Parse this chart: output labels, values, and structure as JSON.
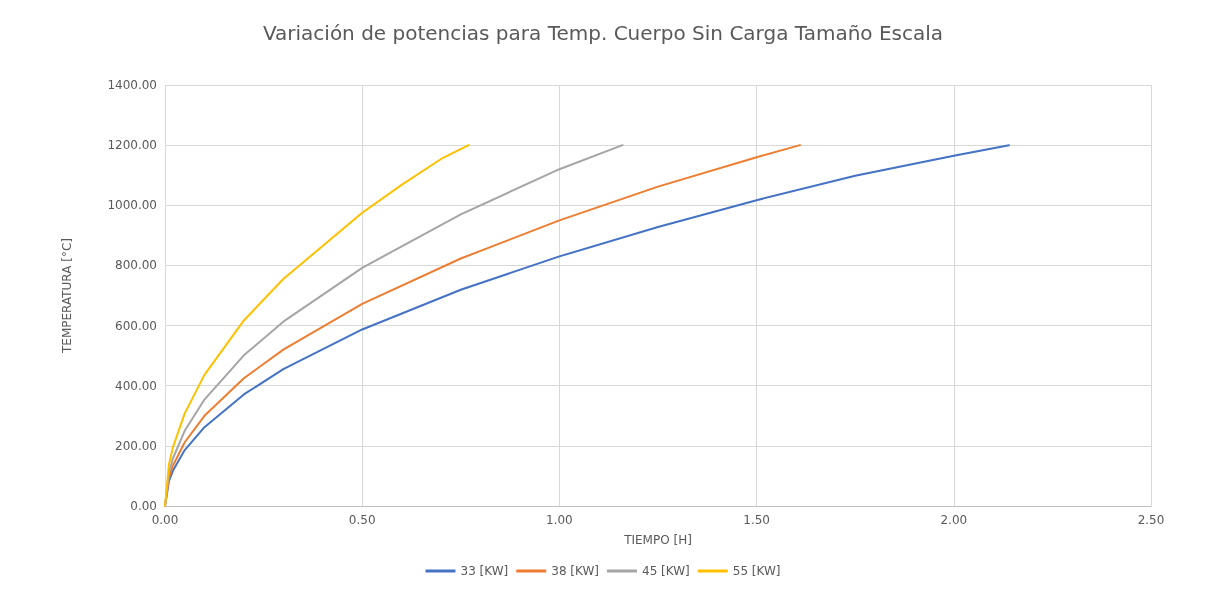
{
  "chart_data": {
    "type": "line",
    "title": "Variación de potencias para Temp. Cuerpo Sin Carga Tamaño Escala",
    "xlabel": "TIEMPO [H]",
    "ylabel": "TEMPERATURA [°C]",
    "xlim": [
      0,
      2.5
    ],
    "xticks": [
      {
        "value": 0,
        "label": "0.00"
      },
      {
        "value": 0.5,
        "label": "0.50"
      },
      {
        "value": 1,
        "label": "1.00"
      },
      {
        "value": 1.5,
        "label": "1.50"
      },
      {
        "value": 2,
        "label": "2.00"
      },
      {
        "value": 2.5,
        "label": "2.50"
      }
    ],
    "ylim": [
      0,
      1400
    ],
    "yticks": [
      {
        "value": 0,
        "label": "0.00"
      },
      {
        "value": 200,
        "label": "200.00"
      },
      {
        "value": 400,
        "label": "400.00"
      },
      {
        "value": 600,
        "label": "600.00"
      },
      {
        "value": 800,
        "label": "800.00"
      },
      {
        "value": 1000,
        "label": "1000.00"
      },
      {
        "value": 1200,
        "label": "1200.00"
      },
      {
        "value": 1400,
        "label": "1400.00"
      }
    ],
    "grid": true,
    "legend": "bottom",
    "marker": "none",
    "line_style": "solid",
    "series": [
      {
        "name": "33 [KW]",
        "color": "#4472c4",
        "x": [
          0,
          0.01,
          0.02,
          0.05,
          0.1,
          0.2,
          0.3,
          0.5,
          0.75,
          1.0,
          1.25,
          1.5,
          1.75,
          2.0,
          2.14
        ],
        "values": [
          0,
          83,
          117,
          186,
          262,
          371,
          455,
          587,
          719,
          830,
          928,
          1017,
          1098,
          1165,
          1200
        ]
      },
      {
        "name": "38 [KW]",
        "color": "#ed7d31",
        "x": [
          0,
          0.01,
          0.02,
          0.05,
          0.1,
          0.2,
          0.3,
          0.5,
          0.75,
          1.0,
          1.25,
          1.5,
          1.61
        ],
        "values": [
          0,
          95,
          134,
          212,
          300,
          425,
          520,
          672,
          823,
          950,
          1062,
          1160,
          1200
        ]
      },
      {
        "name": "45 [KW]",
        "color": "#a5a5a5",
        "x": [
          0,
          0.01,
          0.02,
          0.05,
          0.1,
          0.2,
          0.3,
          0.5,
          0.75,
          1.0,
          1.16
        ],
        "values": [
          0,
          112,
          158,
          250,
          354,
          501,
          613,
          792,
          970,
          1120,
          1200
        ]
      },
      {
        "name": "55 [KW]",
        "color": "#ffc000",
        "x": [
          0,
          0.01,
          0.02,
          0.05,
          0.1,
          0.2,
          0.3,
          0.5,
          0.6,
          0.7,
          0.77
        ],
        "values": [
          0,
          138,
          195,
          308,
          436,
          617,
          755,
          975,
          1068,
          1154,
          1200
        ]
      }
    ]
  }
}
